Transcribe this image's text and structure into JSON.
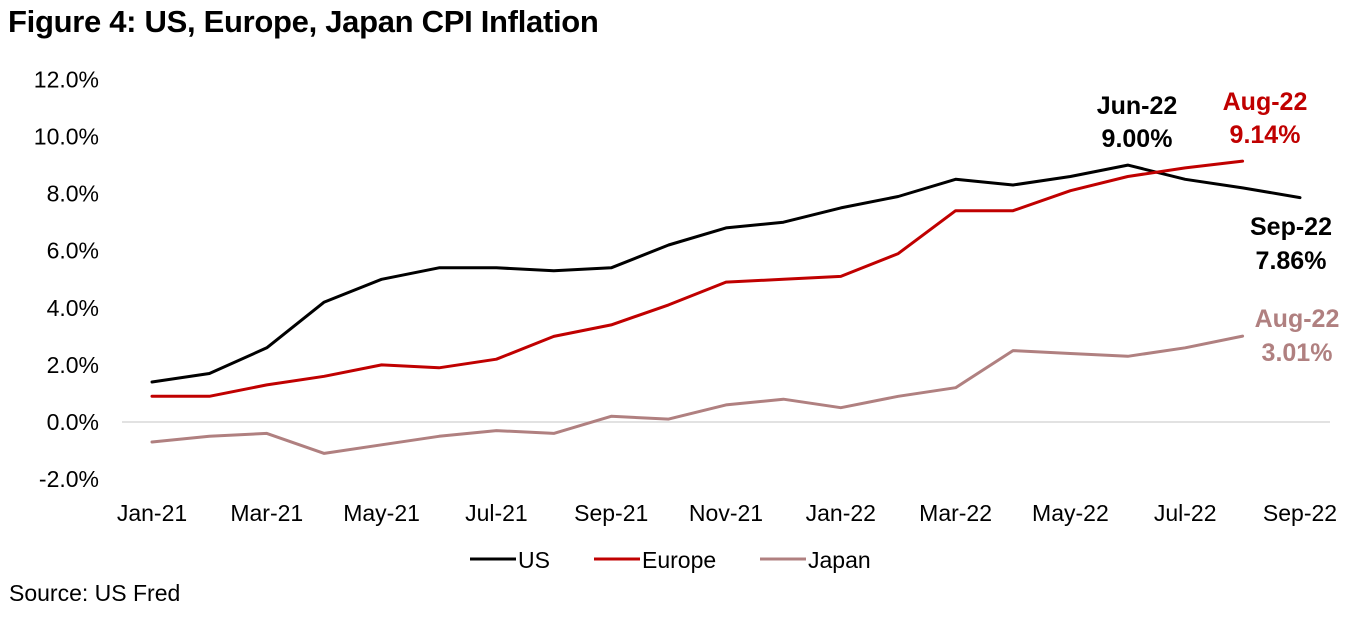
{
  "header": {
    "title": "Figure 4: US, Europe, Japan CPI Inflation"
  },
  "footer": {
    "source": "Source: US Fred"
  },
  "colors": {
    "us": "#000000",
    "europe": "#C00000",
    "japan": "#B08080",
    "zero_line": "#D9D9D9"
  },
  "chart_data": {
    "type": "line",
    "title": "Figure 4: US, Europe, Japan CPI Inflation",
    "xlabel": "",
    "ylabel": "",
    "ylim": [
      -2,
      12
    ],
    "yticks": [
      12,
      10,
      8,
      6,
      4,
      2,
      0,
      -2
    ],
    "ytick_labels": [
      "12.0%",
      "10.0%",
      "8.0%",
      "6.0%",
      "4.0%",
      "2.0%",
      "0.0%",
      "-2.0%"
    ],
    "x": [
      "Jan-21",
      "Feb-21",
      "Mar-21",
      "Apr-21",
      "May-21",
      "Jun-21",
      "Jul-21",
      "Aug-21",
      "Sep-21",
      "Oct-21",
      "Nov-21",
      "Dec-21",
      "Jan-22",
      "Feb-22",
      "Mar-22",
      "Apr-22",
      "May-22",
      "Jun-22",
      "Jul-22",
      "Aug-22",
      "Sep-22"
    ],
    "xtick_labels": [
      "Jan-21",
      "Mar-21",
      "May-21",
      "Jul-21",
      "Sep-21",
      "Nov-21",
      "Jan-22",
      "Mar-22",
      "May-22",
      "Jul-22",
      "Sep-22"
    ],
    "grid": false,
    "legend": {
      "position": "bottom",
      "entries": [
        "US",
        "Europe",
        "Japan"
      ]
    },
    "series": [
      {
        "name": "US",
        "color": "#000000",
        "values": [
          1.4,
          1.7,
          2.6,
          4.2,
          5.0,
          5.4,
          5.4,
          5.3,
          5.4,
          6.2,
          6.8,
          7.0,
          7.5,
          7.9,
          8.5,
          8.3,
          8.6,
          9.0,
          8.5,
          8.2,
          7.86
        ]
      },
      {
        "name": "Europe",
        "color": "#C00000",
        "values": [
          0.9,
          0.9,
          1.3,
          1.6,
          2.0,
          1.9,
          2.2,
          3.0,
          3.4,
          4.1,
          4.9,
          5.0,
          5.1,
          5.9,
          7.4,
          7.4,
          8.1,
          8.6,
          8.9,
          9.14,
          null
        ]
      },
      {
        "name": "Japan",
        "color": "#B08080",
        "values": [
          -0.7,
          -0.5,
          -0.4,
          -1.1,
          -0.8,
          -0.5,
          -0.3,
          -0.4,
          0.2,
          0.1,
          0.6,
          0.8,
          0.5,
          0.9,
          1.2,
          2.5,
          2.4,
          2.3,
          2.6,
          3.01,
          null
        ]
      }
    ],
    "annotations": [
      {
        "series": "US",
        "label": "Jun-22",
        "value": "9.00%",
        "color": "#000000"
      },
      {
        "series": "Europe",
        "label": "Aug-22",
        "value": "9.14%",
        "color": "#C00000"
      },
      {
        "series": "US",
        "label": "Sep-22",
        "value": "7.86%",
        "color": "#000000"
      },
      {
        "series": "Japan",
        "label": "Aug-22",
        "value": "3.01%",
        "color": "#B08080"
      }
    ]
  }
}
